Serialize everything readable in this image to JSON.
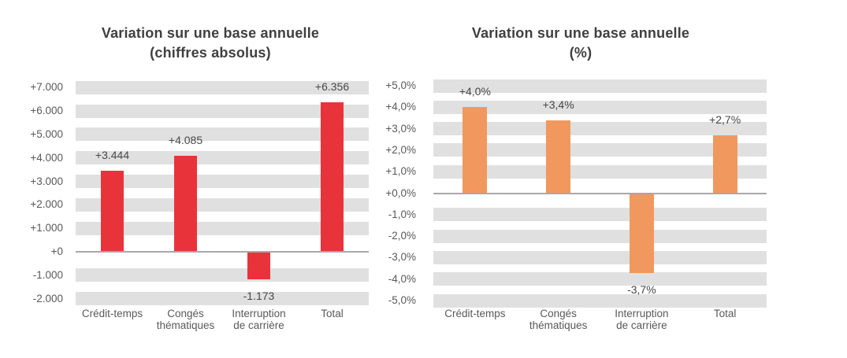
{
  "chart_data": [
    {
      "type": "bar",
      "title": "Variation sur une base annuelle",
      "subtitle": "(chiffres absolus)",
      "categories": [
        "Crédit-temps",
        "Congés\nthématiques",
        "Interruption\nde carrière",
        "Total"
      ],
      "values": [
        3444,
        4085,
        -1173,
        6356
      ],
      "data_labels": [
        "+3.444",
        "+4.085",
        "-1.173",
        "+6.356"
      ],
      "tick_values": [
        7000,
        6000,
        5000,
        4000,
        3000,
        2000,
        1000,
        0,
        -1000,
        -2000
      ],
      "tick_labels": [
        "+7.000",
        "+6.000",
        "+5.000",
        "+4.000",
        "+3.000",
        "+2.000",
        "+1.000",
        "+0",
        "-1.000",
        "-2.000"
      ],
      "ylim": [
        -2000,
        7000
      ],
      "xlabel": "",
      "ylabel": "",
      "legend": "none",
      "grid": "horizontal-gray-bands",
      "bar_color": "#e9333b"
    },
    {
      "type": "bar",
      "title": "Variation sur une base annuelle",
      "subtitle": "(%)",
      "categories": [
        "Crédit-temps",
        "Congés\nthématiques",
        "Interruption\nde carrière",
        "Total"
      ],
      "values": [
        4.0,
        3.4,
        -3.7,
        2.7
      ],
      "data_labels": [
        "+4,0%",
        "+3,4%",
        "-3,7%",
        "+2,7%"
      ],
      "tick_values": [
        5,
        4,
        3,
        2,
        1,
        0,
        -1,
        -2,
        -3,
        -4,
        -5
      ],
      "tick_labels": [
        "+5,0%",
        "+4,0%",
        "+3,0%",
        "+2,0%",
        "+1,0%",
        "+0,0%",
        "-1,0%",
        "-2,0%",
        "-3,0%",
        "-4,0%",
        "-5,0%"
      ],
      "ylim": [
        -5,
        5
      ],
      "xlabel": "",
      "ylabel": "",
      "legend": "none",
      "grid": "horizontal-gray-bands",
      "bar_color": "#f0985e"
    }
  ],
  "colors": {
    "band_gray": "#e0e0e0",
    "axis_line_gray": "#a8a8a8",
    "title_text": "#3f3f3f",
    "axis_text": "#595959",
    "data_label_text": "#474747",
    "background": "#ffffff"
  }
}
